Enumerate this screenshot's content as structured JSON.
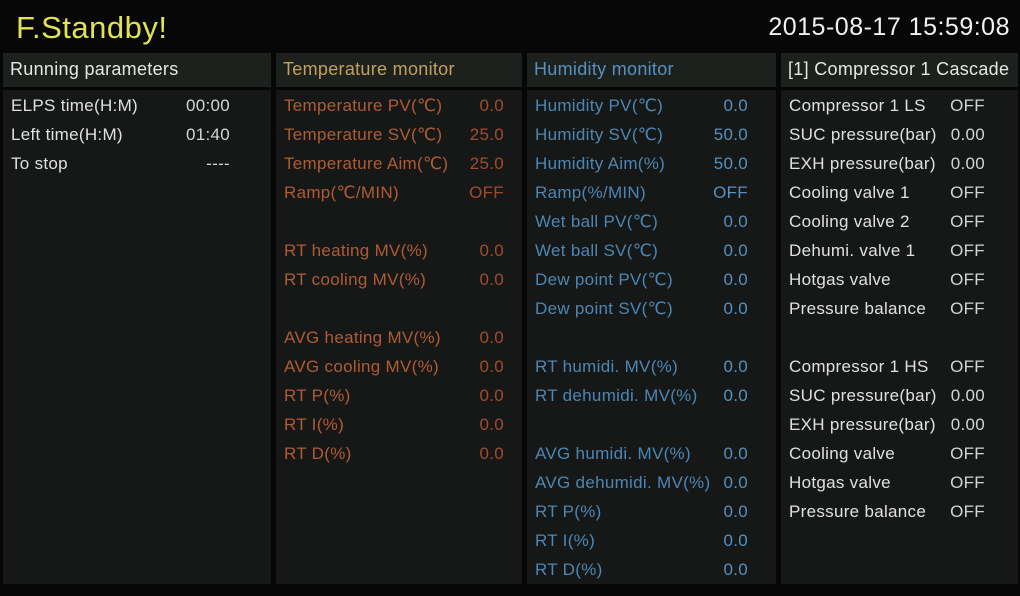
{
  "header": {
    "status_title": "F.Standby!",
    "datetime": "2015-08-17 15:59:08"
  },
  "colors": {
    "bg": "#060706",
    "panel_bg": "#151816",
    "panel_header_bg": "#1d211e",
    "title_yellow": "#e2e257",
    "clock_white": "#f2f2f0",
    "white_header": "#e6e7e4",
    "white_label": "#e0e1de",
    "white_value": "#d4d5d2",
    "temp_header": "#c4a05c",
    "temp_label": "#b05b33",
    "temp_value": "#a34b2b",
    "humidity_header": "#5890bf",
    "humidity_label": "#4c86b4",
    "humidity_value": "#5590c1"
  },
  "columns": [
    {
      "id": "running-parameters",
      "title": "Running parameters",
      "rows": [
        {
          "label": "ELPS time(H:M)",
          "value": "00:00"
        },
        {
          "label": "Left time(H:M)",
          "value": "01:40"
        },
        {
          "label": "To stop",
          "value": "----"
        }
      ]
    },
    {
      "id": "temperature-monitor",
      "title": "Temperature monitor",
      "rows": [
        {
          "label": "Temperature PV(℃)",
          "value": "0.0"
        },
        {
          "label": "Temperature SV(℃)",
          "value": "25.0"
        },
        {
          "label": "Temperature Aim(℃)",
          "value": "25.0"
        },
        {
          "label": "Ramp(℃/MIN)",
          "value": "OFF"
        },
        {
          "spacer": true
        },
        {
          "label": "RT heating MV(%)",
          "value": "0.0"
        },
        {
          "label": "RT cooling MV(%)",
          "value": "0.0"
        },
        {
          "spacer": true
        },
        {
          "label": "AVG heating MV(%)",
          "value": "0.0"
        },
        {
          "label": "AVG cooling MV(%)",
          "value": "0.0"
        },
        {
          "label": "RT P(%)",
          "value": "0.0"
        },
        {
          "label": "RT I(%)",
          "value": "0.0"
        },
        {
          "label": "RT D(%)",
          "value": "0.0"
        }
      ]
    },
    {
      "id": "humidity-monitor",
      "title": "Humidity monitor",
      "rows": [
        {
          "label": "Humidity PV(℃)",
          "value": "0.0"
        },
        {
          "label": "Humidity SV(℃)",
          "value": "50.0"
        },
        {
          "label": "Humidity Aim(%)",
          "value": "50.0"
        },
        {
          "label": "Ramp(%/MIN)",
          "value": "OFF"
        },
        {
          "label": "Wet ball PV(℃)",
          "value": "0.0"
        },
        {
          "label": "Wet ball SV(℃)",
          "value": "0.0"
        },
        {
          "label": "Dew point PV(℃)",
          "value": "0.0"
        },
        {
          "label": "Dew point SV(℃)",
          "value": "0.0"
        },
        {
          "spacer": true
        },
        {
          "label": "RT humidi. MV(%)",
          "value": "0.0"
        },
        {
          "label": "RT dehumidi. MV(%)",
          "value": "0.0"
        },
        {
          "spacer": true
        },
        {
          "label": "AVG humidi. MV(%)",
          "value": "0.0"
        },
        {
          "label": "AVG dehumidi. MV(%)",
          "value": "0.0"
        },
        {
          "label": "RT P(%)",
          "value": "0.0"
        },
        {
          "label": "RT I(%)",
          "value": "0.0"
        },
        {
          "label": "RT D(%)",
          "value": "0.0"
        }
      ]
    },
    {
      "id": "compressor-1-cascade",
      "title": "[1] Compressor 1 Cascade",
      "rows": [
        {
          "label": "Compressor 1 LS",
          "value": "OFF"
        },
        {
          "label": "SUC pressure(bar)",
          "value": "0.00"
        },
        {
          "label": "EXH pressure(bar)",
          "value": "0.00"
        },
        {
          "label": "Cooling valve 1",
          "value": "OFF"
        },
        {
          "label": "Cooling valve 2",
          "value": "OFF"
        },
        {
          "label": "Dehumi. valve 1",
          "value": "OFF"
        },
        {
          "label": "Hotgas valve",
          "value": "OFF"
        },
        {
          "label": "Pressure balance",
          "value": "OFF"
        },
        {
          "spacer": true
        },
        {
          "label": "Compressor 1 HS",
          "value": "OFF"
        },
        {
          "label": "SUC pressure(bar)",
          "value": "0.00"
        },
        {
          "label": "EXH pressure(bar)",
          "value": "0.00"
        },
        {
          "label": "Cooling valve",
          "value": "OFF"
        },
        {
          "label": "Hotgas valve",
          "value": "OFF"
        },
        {
          "label": "Pressure balance",
          "value": "OFF"
        }
      ]
    }
  ]
}
